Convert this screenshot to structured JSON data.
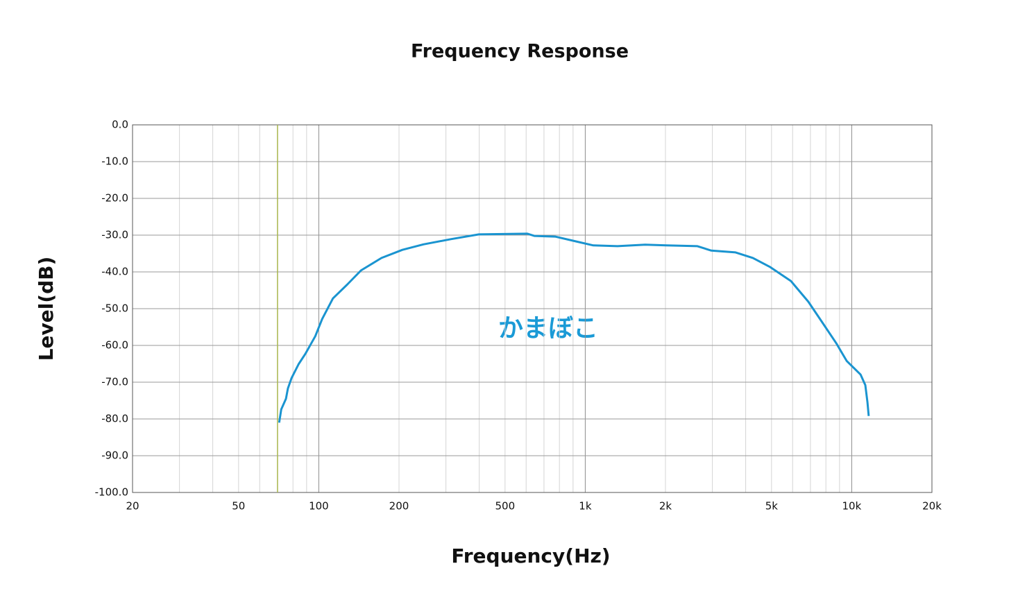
{
  "chart_data": {
    "type": "line",
    "title": "Frequency Response",
    "x_label": "Frequency(Hz)",
    "y_label": "Level(dB)",
    "annotation": "かまぼこ",
    "log_x": true,
    "grid": true,
    "xlim": [
      20,
      20000
    ],
    "ylim": [
      -100,
      0
    ],
    "xticks": [
      20,
      50,
      100,
      200,
      500,
      {
        "value": 1000,
        "label": "1k"
      },
      {
        "value": 2000,
        "label": "2k"
      },
      {
        "value": 5000,
        "label": "5k"
      },
      {
        "value": 10000,
        "label": "10k"
      },
      {
        "value": 20000,
        "label": "20k"
      }
    ],
    "xminor": [
      30,
      40,
      60,
      70,
      80,
      90,
      300,
      400,
      600,
      700,
      800,
      900,
      3000,
      4000,
      6000,
      7000,
      8000,
      9000
    ],
    "yticks": [
      {
        "value": 0,
        "label": "0.0"
      },
      {
        "value": -10,
        "label": "-10.0"
      },
      {
        "value": -20,
        "label": "-20.0"
      },
      {
        "value": -30,
        "label": "-30.0"
      },
      {
        "value": -40,
        "label": "-40.0"
      },
      {
        "value": -50,
        "label": "-50.0"
      },
      {
        "value": -60,
        "label": "-60.0"
      },
      {
        "value": -70,
        "label": "-70.0"
      },
      {
        "value": -80,
        "label": "-80.0"
      },
      {
        "value": -90,
        "label": "-90.0"
      },
      {
        "value": -100,
        "label": "-100.0"
      }
    ],
    "marker_line": {
      "x": 70,
      "color": "#a9b74c"
    },
    "series": [
      {
        "name": "Level",
        "color": "#1a94d0",
        "x": [
          71,
          72.3,
          75.3,
          76.6,
          79,
          84,
          89,
          97,
          103,
          113,
          128,
          144,
          172,
          206,
          247,
          313,
          399,
          607,
          644,
          771,
          922,
          1072,
          1321,
          1679,
          2014,
          2636,
          2972,
          3665,
          4257,
          4947,
          5917,
          6871,
          7763,
          8750,
          9572,
          10790,
          11245,
          11458,
          11585
        ],
        "values": [
          -81,
          -77.4,
          -74.5,
          -71.7,
          -68.9,
          -65.1,
          -62.3,
          -57.5,
          -52.8,
          -47.2,
          -43.4,
          -39.6,
          -36.2,
          -34,
          -32.5,
          -31.1,
          -29.8,
          -29.6,
          -30.2,
          -30.4,
          -31.7,
          -32.8,
          -33,
          -32.6,
          -32.8,
          -33,
          -34.2,
          -34.7,
          -36.2,
          -38.7,
          -42.5,
          -48.1,
          -53.8,
          -59.4,
          -64.2,
          -67.9,
          -70.8,
          -75.5,
          -79.2
        ]
      }
    ]
  }
}
